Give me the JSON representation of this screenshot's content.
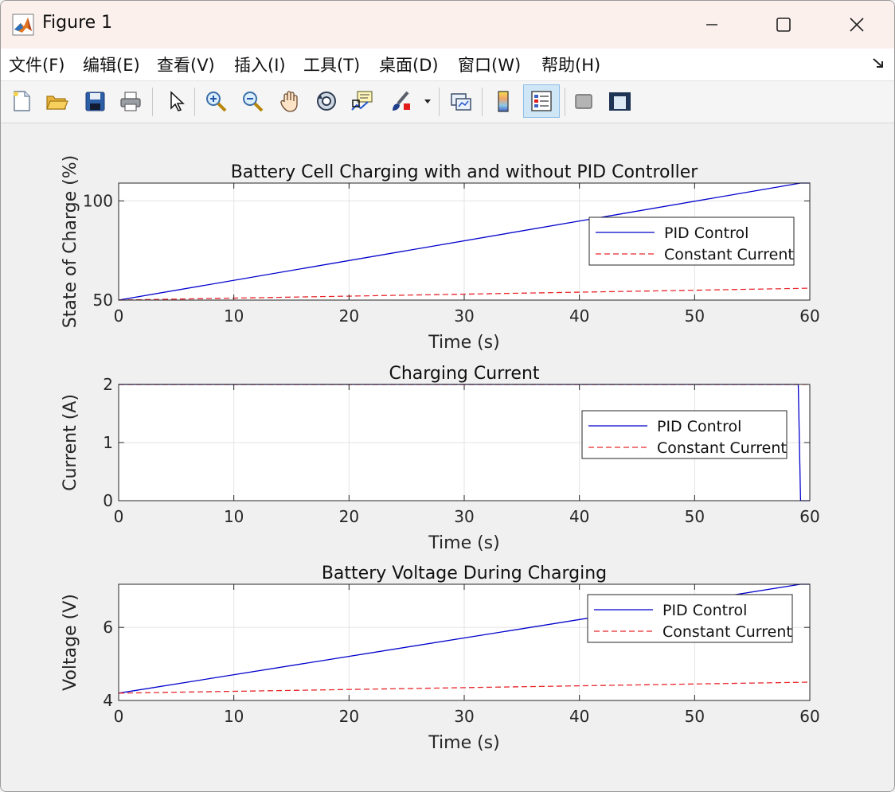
{
  "window": {
    "title": "Figure 1"
  },
  "menu": [
    "文件(F)",
    "编辑(E)",
    "查看(V)",
    "插入(I)",
    "工具(T)",
    "桌面(D)",
    "窗口(W)",
    "帮助(H)"
  ],
  "toolbar": {
    "buttons": [
      "new-figure",
      "open-file",
      "save",
      "print",
      "edit-plot",
      "zoom-in",
      "zoom-out",
      "pan",
      "rotate-3d",
      "data-cursor",
      "brush",
      "link-plot",
      "insert-colorbar",
      "insert-legend",
      "hide-plot-tools",
      "show-plot-tools"
    ]
  },
  "chart_data": [
    {
      "type": "line",
      "title": "Battery Cell Charging with and without PID Controller",
      "xlabel": "Time (s)",
      "ylabel": "State of Charge (%)",
      "xlim": [
        0,
        60
      ],
      "ylim": [
        50,
        109
      ],
      "xticks": [
        "0",
        "10",
        "20",
        "30",
        "40",
        "50",
        "60"
      ],
      "yticks": [
        "50",
        "100"
      ],
      "grid": true,
      "legend_position": "right",
      "series": [
        {
          "name": "PID Control",
          "color": "#0000cc",
          "style": "solid",
          "x": [
            0,
            59.2,
            60
          ],
          "y": [
            50,
            109,
            109
          ]
        },
        {
          "name": "Constant Current",
          "color": "#e8262b",
          "style": "dashed",
          "x": [
            0,
            60
          ],
          "y": [
            50,
            56
          ]
        }
      ]
    },
    {
      "type": "line",
      "title": "Charging Current",
      "xlabel": "Time (s)",
      "ylabel": "Current (A)",
      "xlim": [
        0,
        60
      ],
      "ylim": [
        0,
        2
      ],
      "xticks": [
        "0",
        "10",
        "20",
        "30",
        "40",
        "50",
        "60"
      ],
      "yticks": [
        "0",
        "1",
        "2"
      ],
      "grid": true,
      "legend_position": "right",
      "series": [
        {
          "name": "PID Control",
          "color": "#0000cc",
          "style": "solid",
          "x": [
            0,
            59.0,
            59.2,
            60
          ],
          "y": [
            2,
            2,
            0,
            0
          ]
        },
        {
          "name": "Constant Current",
          "color": "#e8262b",
          "style": "dashed",
          "x": [
            0,
            60
          ],
          "y": [
            2,
            2
          ]
        }
      ]
    },
    {
      "type": "line",
      "title": "Battery Voltage During Charging",
      "xlabel": "Time (s)",
      "ylabel": "Voltage (V)",
      "xlim": [
        0,
        60
      ],
      "ylim": [
        4,
        7.18
      ],
      "xticks": [
        "0",
        "10",
        "20",
        "30",
        "40",
        "50",
        "60"
      ],
      "yticks": [
        "4",
        "6"
      ],
      "grid": true,
      "legend_position": "top-right",
      "series": [
        {
          "name": "PID Control",
          "color": "#0000cc",
          "style": "solid",
          "x": [
            0,
            59.2,
            60
          ],
          "y": [
            4.2,
            7.18,
            7.18
          ]
        },
        {
          "name": "Constant Current",
          "color": "#e8262b",
          "style": "dashed",
          "x": [
            0,
            60
          ],
          "y": [
            4.2,
            4.5
          ]
        }
      ]
    }
  ]
}
